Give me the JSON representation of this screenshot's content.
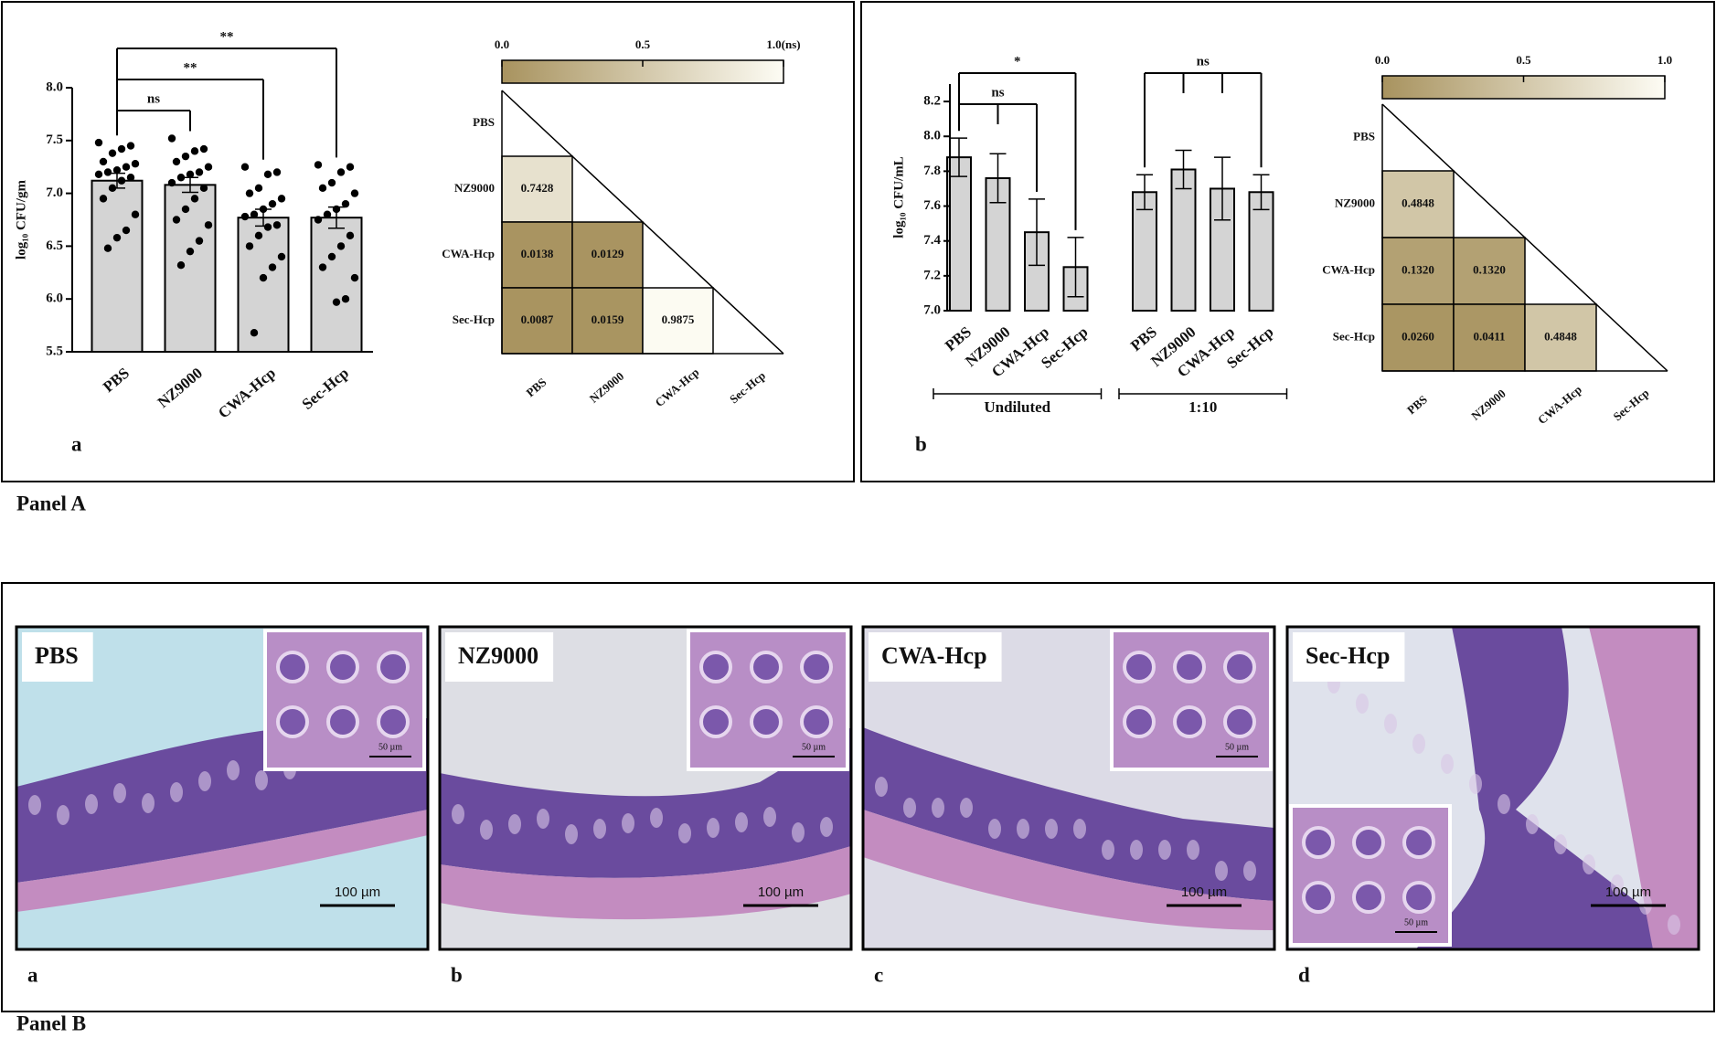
{
  "panel_a": {
    "label": "Panel A"
  },
  "chart_data": [
    {
      "type": "bar",
      "label": "a",
      "y_label": "log₁₀ CFU/gm",
      "color": "#d4d4d4",
      "categories": [
        "PBS",
        "NZ9000",
        "CWA-Hcp",
        "Sec-Hcp"
      ],
      "values": [
        7.12,
        7.08,
        6.77,
        6.77
      ],
      "errors": [
        0.07,
        0.07,
        0.08,
        0.1
      ],
      "points": [
        [
          7.48,
          7.45,
          7.42,
          7.38,
          7.3,
          7.28,
          7.25,
          7.22,
          7.2,
          7.18,
          7.15,
          7.12,
          7.05,
          6.95,
          6.8,
          6.65,
          6.58,
          6.48
        ],
        [
          7.52,
          7.42,
          7.4,
          7.35,
          7.3,
          7.25,
          7.2,
          7.18,
          7.15,
          7.1,
          7.05,
          6.95,
          6.85,
          6.75,
          6.7,
          6.55,
          6.45,
          6.32
        ],
        [
          7.25,
          7.2,
          7.18,
          7.05,
          7.0,
          6.95,
          6.9,
          6.85,
          6.8,
          6.78,
          6.7,
          6.68,
          6.6,
          6.5,
          6.4,
          6.3,
          6.2,
          5.68
        ],
        [
          7.27,
          7.25,
          7.2,
          7.1,
          7.05,
          7.0,
          6.9,
          6.85,
          6.8,
          6.75,
          6.6,
          6.5,
          6.4,
          6.3,
          6.2,
          6.0,
          5.97
        ]
      ],
      "ylim": [
        5.5,
        8.0
      ],
      "yticks": [
        5.5,
        {
          "value": 6,
          "label": "6.0"
        },
        6.5,
        {
          "value": 7,
          "label": "7.0"
        },
        7.5,
        {
          "value": 8,
          "label": "8.0"
        }
      ],
      "comparisons": [
        {
          "groups": [
            "PBS",
            "NZ9000"
          ],
          "label": "ns"
        },
        {
          "groups": [
            "PBS",
            "CWA-Hcp"
          ],
          "label": "**"
        },
        {
          "groups": [
            "PBS",
            "Sec-Hcp"
          ],
          "label": "**"
        }
      ]
    },
    {
      "type": "heatmap",
      "colormap": [
        "#a8935f",
        "#fdfcf4"
      ],
      "clim": [
        0,
        1
      ],
      "colorbar_ticks": [
        {
          "value": 0,
          "label": "0.0"
        },
        0.5,
        {
          "value": 1,
          "label": "1.0(ns)"
        }
      ],
      "labels": [
        "PBS",
        "NZ9000",
        "CWA-Hcp",
        "Sec-Hcp"
      ],
      "values": [
        [
          null,
          null,
          null,
          null
        ],
        [
          0.7428,
          null,
          null,
          null
        ],
        [
          0.0138,
          0.0129,
          null,
          null
        ],
        [
          0.0087,
          0.0159,
          0.9875,
          null
        ]
      ]
    },
    {
      "type": "grouped_bar",
      "label": "b",
      "y_label": "log₁₀ CFU/mL",
      "color": "#d4d4d4",
      "groups": [
        {
          "name": "Undiluted",
          "categories": [
            "PBS",
            "NZ9000",
            "CWA-Hcp",
            "Sec-Hcp"
          ],
          "values": [
            7.88,
            7.76,
            7.45,
            7.25
          ],
          "errors": [
            0.11,
            0.14,
            0.19,
            0.17
          ]
        },
        {
          "name": "1:10",
          "categories": [
            "PBS",
            "NZ9000",
            "CWA-Hcp",
            "Sec-Hcp"
          ],
          "values": [
            7.68,
            7.81,
            7.7,
            7.68
          ],
          "errors": [
            0.1,
            0.11,
            0.18,
            0.1
          ]
        }
      ],
      "ylim": [
        7.0,
        8.3
      ],
      "yticks": [
        {
          "value": 7,
          "label": "7.0"
        },
        7.2,
        7.4,
        7.6,
        7.8,
        {
          "value": 8,
          "label": "8.0"
        },
        8.2
      ],
      "comparisons": [
        {
          "group": "Undiluted",
          "groups": [
            "PBS",
            "NZ9000",
            "CWA-Hcp"
          ],
          "label": "ns"
        },
        {
          "group": "Undiluted",
          "groups": [
            "PBS",
            "Sec-Hcp"
          ],
          "label": "*"
        },
        {
          "group": "1:10",
          "groups": [
            "PBS",
            "NZ9000",
            "CWA-Hcp",
            "Sec-Hcp"
          ],
          "label": "ns"
        }
      ]
    },
    {
      "type": "heatmap",
      "colormap": [
        "#a8935f",
        "#fdfcf4"
      ],
      "clim": [
        0,
        1
      ],
      "colorbar_ticks": [
        {
          "value": 0,
          "label": "0.0"
        },
        0.5,
        {
          "value": 1,
          "label": "1.0"
        }
      ],
      "labels": [
        "PBS",
        "NZ9000",
        "CWA-Hcp",
        "Sec-Hcp"
      ],
      "values": [
        [
          null,
          null,
          null,
          null
        ],
        [
          0.4848,
          null,
          null,
          null
        ],
        [
          0.132,
          0.132,
          null,
          null
        ],
        [
          0.026,
          0.0411,
          0.4848,
          null
        ]
      ],
      "value_labels": [
        [
          null,
          null,
          null,
          null
        ],
        [
          "0.4848",
          null,
          null,
          null
        ],
        [
          "0.1320",
          "0.1320",
          null,
          null
        ],
        [
          "0.0260",
          "0.0411",
          "0.4848",
          null
        ]
      ]
    }
  ],
  "panel_b": {
    "label": "Panel B",
    "images": [
      {
        "title": "PBS",
        "letter": "a",
        "scale_bar": "100 µm",
        "inset_scale": "50 µm"
      },
      {
        "title": "NZ9000",
        "letter": "b",
        "scale_bar": "100 µm",
        "inset_scale": "50 µm"
      },
      {
        "title": "CWA-Hcp",
        "letter": "c",
        "scale_bar": "100 µm",
        "inset_scale": "50 µm"
      },
      {
        "title": "Sec-Hcp",
        "letter": "d",
        "scale_bar": "100 µm",
        "inset_scale": "50 µm"
      }
    ]
  }
}
